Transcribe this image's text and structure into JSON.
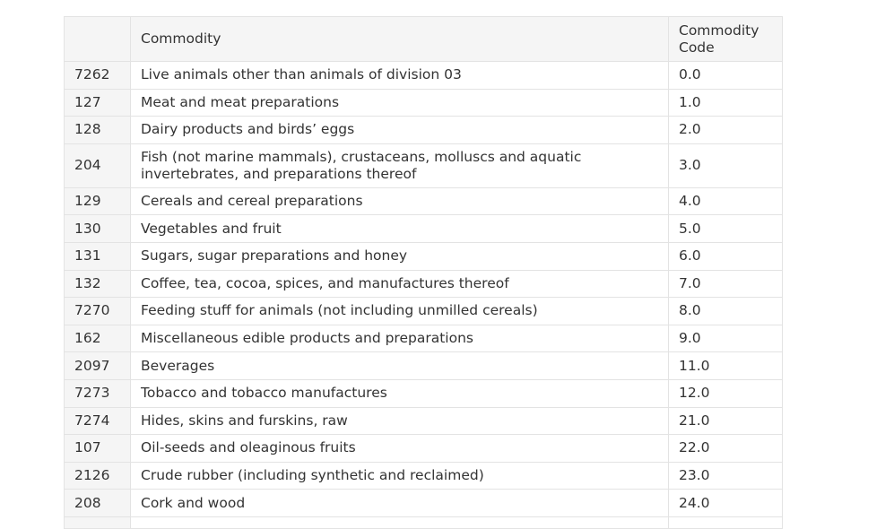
{
  "table": {
    "headers": {
      "index": "",
      "commodity": "Commodity",
      "code": "Commodity Code"
    },
    "rows": [
      {
        "index": "7262",
        "commodity": "Live animals other than animals of division 03",
        "code": "0.0"
      },
      {
        "index": "127",
        "commodity": "Meat and meat preparations",
        "code": "1.0"
      },
      {
        "index": "128",
        "commodity": "Dairy products and birds’ eggs",
        "code": "2.0"
      },
      {
        "index": "204",
        "commodity": "Fish (not marine mammals), crustaceans, molluscs and aquatic invertebrates, and preparations thereof",
        "code": "3.0"
      },
      {
        "index": "129",
        "commodity": "Cereals and cereal preparations",
        "code": "4.0"
      },
      {
        "index": "130",
        "commodity": "Vegetables and fruit",
        "code": "5.0"
      },
      {
        "index": "131",
        "commodity": "Sugars, sugar preparations and honey",
        "code": "6.0"
      },
      {
        "index": "132",
        "commodity": "Coffee, tea, cocoa, spices, and manufactures thereof",
        "code": "7.0"
      },
      {
        "index": "7270",
        "commodity": "Feeding stuff for animals (not including unmilled cereals)",
        "code": "8.0"
      },
      {
        "index": "162",
        "commodity": "Miscellaneous edible products and preparations",
        "code": "9.0"
      },
      {
        "index": "2097",
        "commodity": "Beverages",
        "code": "11.0"
      },
      {
        "index": "7273",
        "commodity": "Tobacco and tobacco manufactures",
        "code": "12.0"
      },
      {
        "index": "7274",
        "commodity": "Hides, skins and furskins, raw",
        "code": "21.0"
      },
      {
        "index": "107",
        "commodity": "Oil-seeds and oleaginous fruits",
        "code": "22.0"
      },
      {
        "index": "2126",
        "commodity": "Crude rubber (including synthetic and reclaimed)",
        "code": "23.0"
      },
      {
        "index": "208",
        "commodity": "Cork and wood",
        "code": "24.0"
      }
    ]
  }
}
